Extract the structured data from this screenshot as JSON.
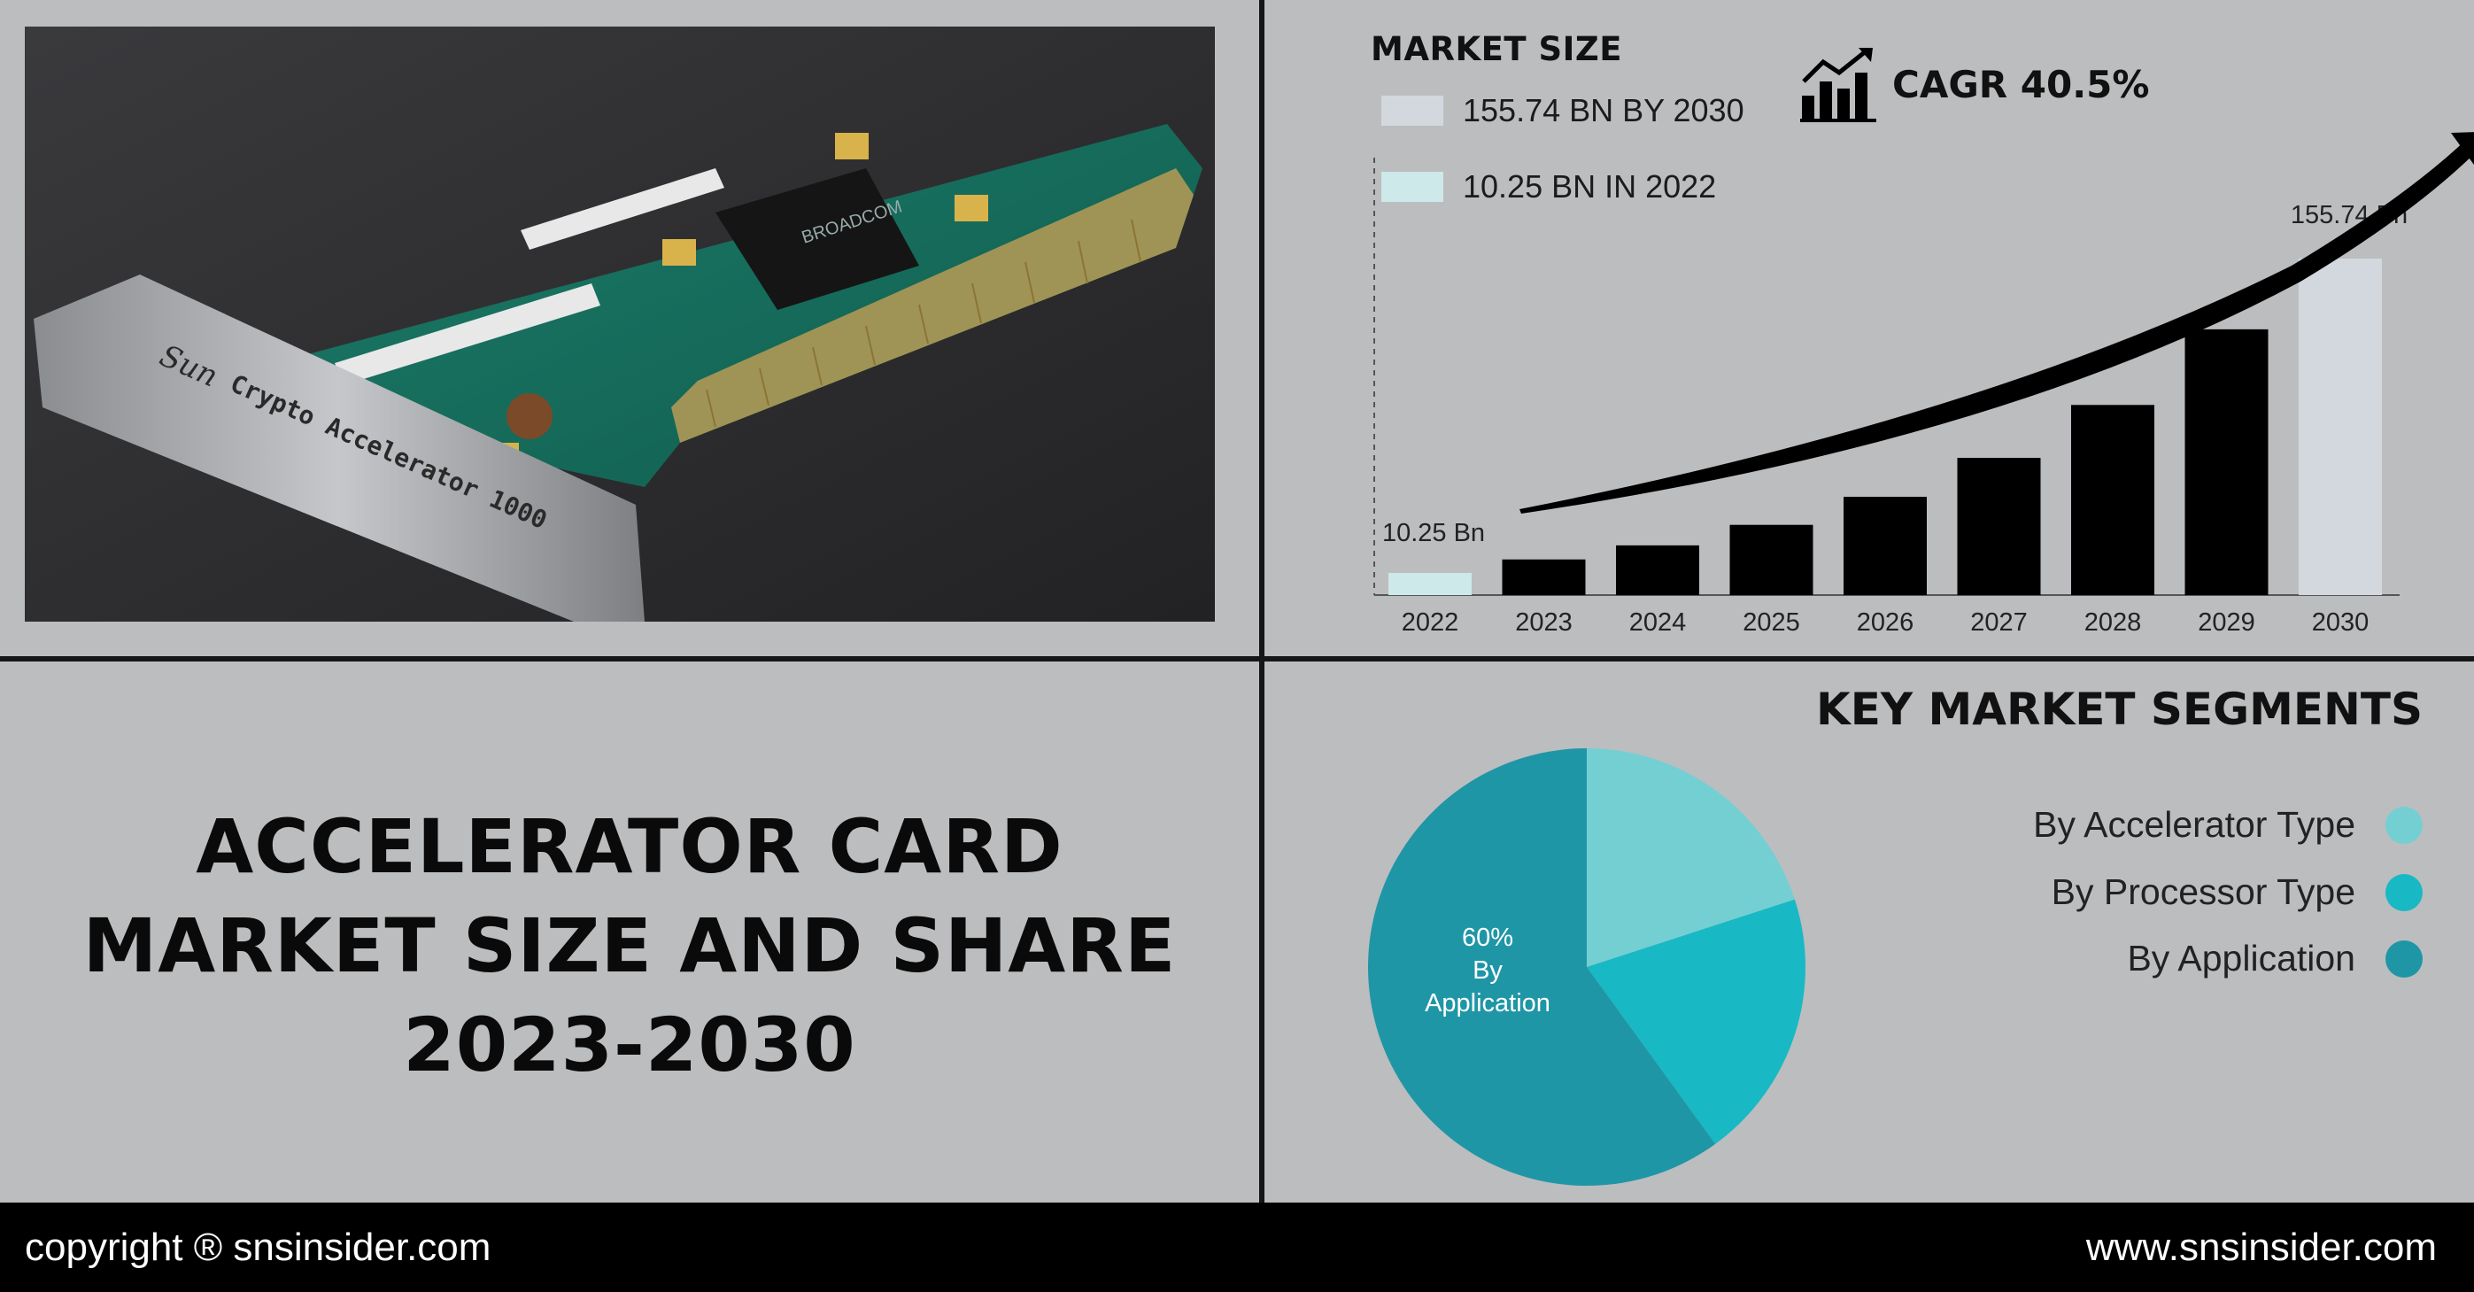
{
  "headline": {
    "line1": "ACCELERATOR CARD",
    "line2": "MARKET SIZE AND SHARE",
    "line3": "2023-2030"
  },
  "photo": {
    "card_labels": [
      "Sun",
      "Crypto Accelerator 1000",
      "BROADCOM"
    ]
  },
  "market_size": {
    "title": "MARKET SIZE",
    "legend": [
      {
        "label": "155.74 BN BY 2030",
        "color": "#d3d8de"
      },
      {
        "label": "10.25 BN IN 2022",
        "color": "#cde9ea"
      }
    ],
    "cagr_label": "CAGR 40.5%",
    "cagr_icon": "bar-chart-trend-icon"
  },
  "chart_data": [
    {
      "type": "bar",
      "categories": [
        "2022",
        "2023",
        "2024",
        "2025",
        "2026",
        "2027",
        "2028",
        "2029",
        "2030"
      ],
      "values": [
        10.25,
        16.5,
        23.0,
        32.5,
        45.5,
        63.5,
        88.0,
        123.0,
        155.74
      ],
      "data_labels": {
        "2022": "10.25 Bn",
        "2030": "155.74 Bn"
      },
      "highlight_colors": {
        "2022": "#cde9ea",
        "2030": "#d3d8de"
      },
      "bar_color": "#000000",
      "title": "",
      "xlabel": "",
      "ylabel": "",
      "ylim": [
        0,
        180
      ]
    },
    {
      "type": "pie",
      "title": "KEY MARKET SEGMENTS",
      "slices": [
        {
          "label": "By Accelerator Type",
          "value": 20,
          "color": "#74cfd3"
        },
        {
          "label": "By Processor Type",
          "value": 20,
          "color": "#18b9c4"
        },
        {
          "label": "By Application",
          "value": 60,
          "color": "#1f96a6"
        }
      ],
      "slice_label": {
        "pct": "60%",
        "line1": "By",
        "line2": "Application"
      }
    }
  ],
  "footer": {
    "copyright": "copyright ® snsinsider.com",
    "website": "www.snsinsider.com"
  }
}
